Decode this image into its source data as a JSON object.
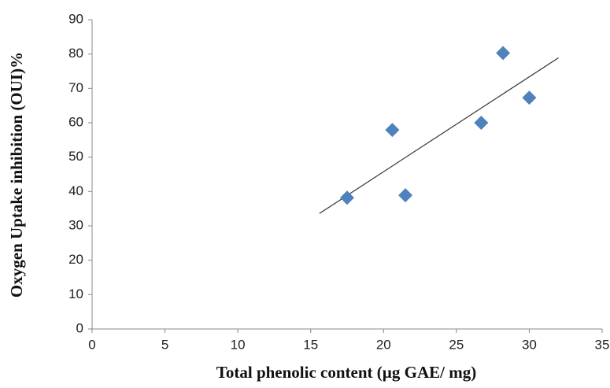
{
  "chart_data": {
    "type": "scatter",
    "x_label": "Total phenolic content (µg GAE/ mg)",
    "y_label": "Oxygen Uptake inhibition (OUI)%",
    "xlim": [
      0,
      35
    ],
    "xticks": [
      0,
      5,
      10,
      15,
      20,
      25,
      30,
      35
    ],
    "ylim": [
      0,
      90
    ],
    "yticks": [
      0,
      10,
      20,
      30,
      40,
      50,
      60,
      70,
      80,
      90
    ],
    "series": [
      {
        "type": "scatter",
        "color": "#4f81bd",
        "x": [
          17.5,
          20.6,
          21.5,
          26.7,
          28.2,
          30.0
        ],
        "values": [
          38.2,
          57.9,
          38.9,
          60.0,
          80.3,
          67.3
        ]
      },
      {
        "type": "line",
        "color": "#333333",
        "x": [
          15.6,
          32.0
        ],
        "values": [
          33.6,
          78.9
        ]
      }
    ]
  }
}
